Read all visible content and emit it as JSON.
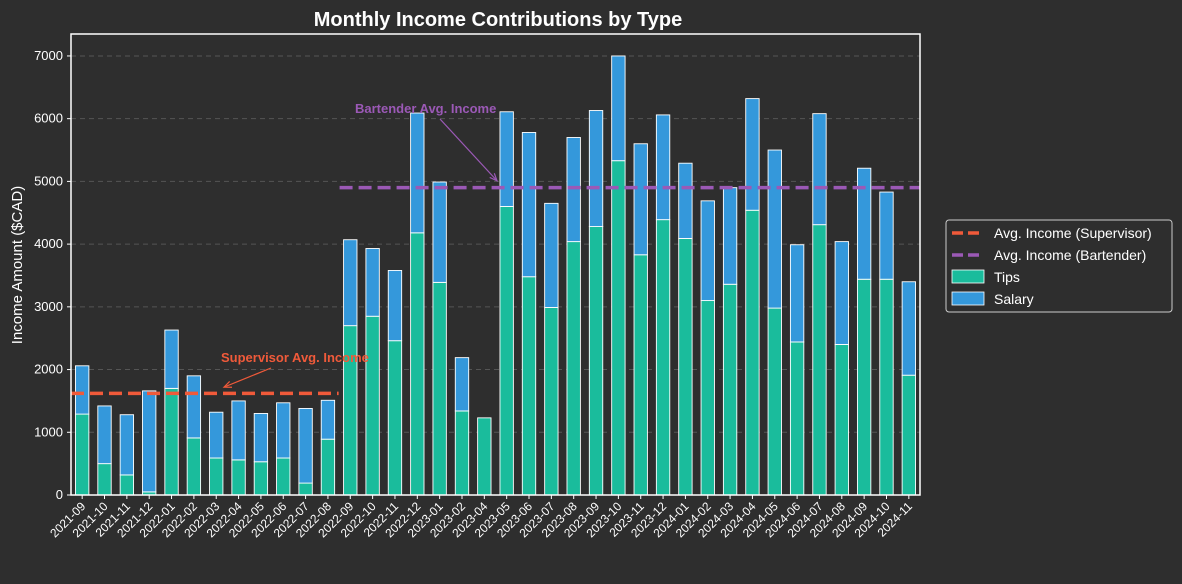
{
  "chart_data": {
    "type": "bar",
    "stacked": true,
    "title": "Monthly Income Contributions by Type",
    "xlabel": "",
    "ylabel": "Income Amount ($CAD)",
    "ylim": [
      0,
      7350
    ],
    "yticks": [
      0,
      1000,
      2000,
      3000,
      4000,
      5000,
      6000,
      7000
    ],
    "grid": "horizontal dashed",
    "legend_position": "right",
    "categories": [
      "2021-09",
      "2021-10",
      "2021-11",
      "2021-12",
      "2022-01",
      "2022-02",
      "2022-03",
      "2022-04",
      "2022-05",
      "2022-06",
      "2022-07",
      "2022-08",
      "2022-09",
      "2022-10",
      "2022-11",
      "2022-12",
      "2023-01",
      "2023-02",
      "2023-04",
      "2023-05",
      "2023-06",
      "2023-07",
      "2023-08",
      "2023-09",
      "2023-10",
      "2023-11",
      "2023-12",
      "2024-01",
      "2024-02",
      "2024-03",
      "2024-04",
      "2024-05",
      "2024-06",
      "2024-07",
      "2024-08",
      "2024-09",
      "2024-10",
      "2024-11"
    ],
    "series": [
      {
        "name": "Tips",
        "color": "#1abc9c",
        "values": [
          1290,
          500,
          320,
          50,
          1700,
          910,
          590,
          560,
          530,
          590,
          190,
          890,
          2700,
          2850,
          2460,
          4180,
          3390,
          1340,
          1230,
          4600,
          3480,
          2990,
          4040,
          4280,
          5330,
          3830,
          4390,
          4090,
          3100,
          3360,
          4540,
          2980,
          2440,
          4310,
          2400,
          3440,
          3440,
          1910
        ]
      },
      {
        "name": "Salary",
        "color": "#3498db",
        "values": [
          770,
          920,
          960,
          1610,
          930,
          990,
          730,
          940,
          770,
          880,
          1190,
          620,
          1370,
          1080,
          1120,
          1910,
          1600,
          850,
          0,
          1510,
          2300,
          1660,
          1660,
          1850,
          1670,
          1770,
          1670,
          1200,
          1590,
          1540,
          1780,
          2520,
          1550,
          1770,
          1640,
          1770,
          1390,
          1490
        ]
      }
    ],
    "reference_lines": [
      {
        "name": "Avg. Income (Supervisor)",
        "value": 1620,
        "color": "#f05a3a",
        "from": "2021-09",
        "to": "2022-08",
        "annotation": "Supervisor Avg. Income"
      },
      {
        "name": "Avg. Income (Bartender)",
        "value": 4900,
        "color": "#9b59b6",
        "from": "2022-09",
        "to": "2024-11",
        "annotation": "Bartender Avg. Income"
      }
    ]
  },
  "legend": {
    "items": [
      {
        "label": "Avg. Income (Supervisor)",
        "kind": "dashed-line",
        "color": "#f05a3a"
      },
      {
        "label": "Avg. Income (Bartender)",
        "kind": "dashed-line",
        "color": "#9b59b6"
      },
      {
        "label": "Tips",
        "kind": "patch",
        "color": "#1abc9c"
      },
      {
        "label": "Salary",
        "kind": "patch",
        "color": "#3498db"
      }
    ]
  }
}
